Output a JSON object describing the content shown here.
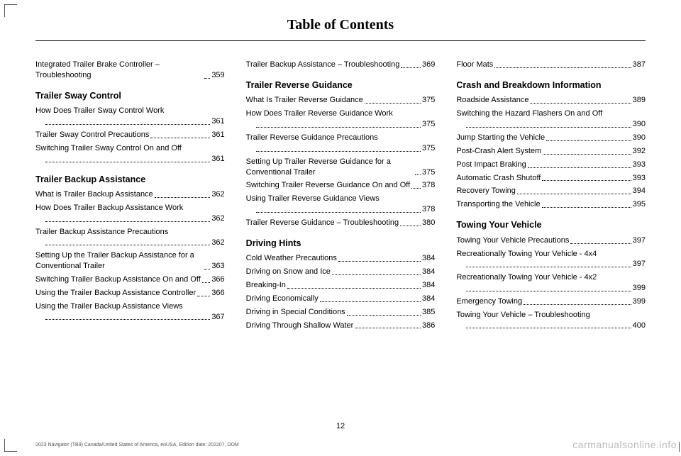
{
  "title": "Table of Contents",
  "page_number": "12",
  "footer_left": "2023 Navigator (TB9) Canada/United States of America, enUSA, Edition date: 202207, DOM",
  "footer_right": "carmanualsonline.info",
  "columns": [
    {
      "blocks": [
        {
          "type": "entry",
          "label": "Integrated Trailer Brake Controller – Troubleshooting",
          "page": "359"
        },
        {
          "type": "head",
          "text": "Trailer Sway Control"
        },
        {
          "type": "entry",
          "label": "How Does Trailer Sway Control Work",
          "page": "361",
          "wrap": true
        },
        {
          "type": "entry",
          "label": "Trailer Sway Control Precautions",
          "page": "361"
        },
        {
          "type": "entry",
          "label": "Switching Trailer Sway Control On and Off",
          "page": "361",
          "wrap": true
        },
        {
          "type": "head",
          "text": "Trailer Backup Assistance"
        },
        {
          "type": "entry",
          "label": "What is Trailer Backup Assistance",
          "page": "362"
        },
        {
          "type": "entry",
          "label": "How Does Trailer Backup Assistance Work",
          "page": "362",
          "wrap": true
        },
        {
          "type": "entry",
          "label": "Trailer Backup Assistance Precautions",
          "page": "362",
          "wrap": true
        },
        {
          "type": "entry",
          "label": "Setting Up the Trailer Backup Assistance for a Conventional Trailer",
          "page": "363"
        },
        {
          "type": "entry",
          "label": "Switching Trailer Backup Assistance On and Off",
          "page": "366"
        },
        {
          "type": "entry",
          "label": "Using the Trailer Backup Assistance Controller",
          "page": "366"
        },
        {
          "type": "entry",
          "label": "Using the Trailer Backup Assistance Views",
          "page": "367",
          "wrap": true
        }
      ]
    },
    {
      "blocks": [
        {
          "type": "entry",
          "label": "Trailer Backup Assistance – Troubleshooting",
          "page": "369"
        },
        {
          "type": "head",
          "text": "Trailer Reverse Guidance"
        },
        {
          "type": "entry",
          "label": "What Is Trailer Reverse Guidance",
          "page": "375"
        },
        {
          "type": "entry",
          "label": "How Does Trailer Reverse Guidance Work",
          "page": "375",
          "wrap": true
        },
        {
          "type": "entry",
          "label": "Trailer Reverse Guidance Precautions",
          "page": "375",
          "wrap": true
        },
        {
          "type": "entry",
          "label": "Setting Up Trailer Reverse Guidance for a Conventional Trailer",
          "page": "375"
        },
        {
          "type": "entry",
          "label": "Switching Trailer Reverse Guidance On and Off",
          "page": "378"
        },
        {
          "type": "entry",
          "label": "Using Trailer Reverse Guidance Views",
          "page": "378",
          "wrap": true
        },
        {
          "type": "entry",
          "label": "Trailer Reverse Guidance – Troubleshooting",
          "page": "380"
        },
        {
          "type": "head",
          "text": "Driving Hints"
        },
        {
          "type": "entry",
          "label": "Cold Weather Precautions",
          "page": "384"
        },
        {
          "type": "entry",
          "label": "Driving on Snow and Ice",
          "page": "384"
        },
        {
          "type": "entry",
          "label": "Breaking-In",
          "page": "384"
        },
        {
          "type": "entry",
          "label": "Driving Economically",
          "page": "384"
        },
        {
          "type": "entry",
          "label": "Driving in Special Conditions",
          "page": "385"
        },
        {
          "type": "entry",
          "label": "Driving Through Shallow Water",
          "page": "386"
        }
      ]
    },
    {
      "blocks": [
        {
          "type": "entry",
          "label": "Floor Mats",
          "page": "387"
        },
        {
          "type": "head",
          "text": "Crash and Breakdown Information"
        },
        {
          "type": "entry",
          "label": "Roadside Assistance",
          "page": "389"
        },
        {
          "type": "entry",
          "label": "Switching the Hazard Flashers On and Off",
          "page": "390",
          "wrap": true
        },
        {
          "type": "entry",
          "label": "Jump Starting the Vehicle",
          "page": "390"
        },
        {
          "type": "entry",
          "label": "Post-Crash Alert System",
          "page": "392"
        },
        {
          "type": "entry",
          "label": "Post Impact Braking",
          "page": "393"
        },
        {
          "type": "entry",
          "label": "Automatic Crash Shutoff",
          "page": "393"
        },
        {
          "type": "entry",
          "label": "Recovery Towing",
          "page": "394"
        },
        {
          "type": "entry",
          "label": "Transporting the Vehicle",
          "page": "395"
        },
        {
          "type": "head",
          "text": "Towing Your Vehicle"
        },
        {
          "type": "entry",
          "label": "Towing Your Vehicle Precautions",
          "page": "397"
        },
        {
          "type": "entry",
          "label": "Recreationally Towing Your Vehicle - 4x4",
          "page": "397",
          "wrap": true
        },
        {
          "type": "entry",
          "label": "Recreationally Towing Your Vehicle - 4x2",
          "page": "399",
          "wrap": true
        },
        {
          "type": "entry",
          "label": "Emergency Towing",
          "page": "399"
        },
        {
          "type": "entry",
          "label": "Towing Your Vehicle – Troubleshooting",
          "page": "400",
          "wrap": true
        }
      ]
    }
  ]
}
